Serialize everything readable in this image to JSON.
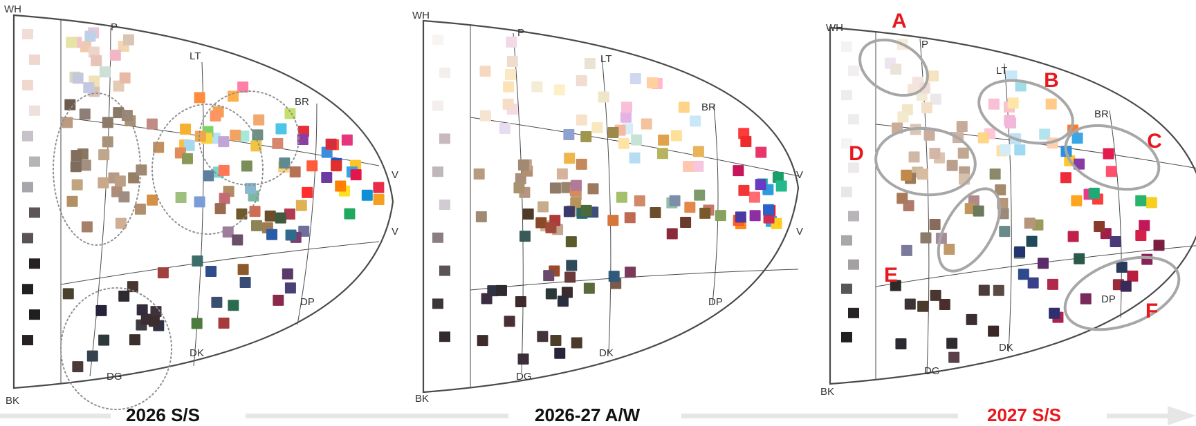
{
  "tone_labels": {
    "wh": "WH",
    "bk": "BK",
    "p": "P",
    "lt": "LT",
    "br": "BR",
    "v": "V",
    "dp": "DP",
    "dk": "DK",
    "dg": "DG"
  },
  "panels": [
    {
      "caption": "2026 S/S",
      "caption_color": "#111111",
      "neutrals": [
        "#f1dcd6",
        "#efd7cf",
        "#f0d8cf",
        "#eee0dd",
        "#c7c2c9",
        "#b7b3b8",
        "#a9a6ab",
        "#5e5556",
        "#5a5354",
        "#262121",
        "#232020",
        "#211e1f",
        "#262222"
      ],
      "regions": {
        "pale": [
          "#f1c9ae",
          "#e8c6d7",
          "#e3ccb6",
          "#d4d9bd",
          "#f2c4c9",
          "#f3d6b0",
          "#eed4c8",
          "#cde0d7",
          "#e7c3b9",
          "#f1b8c3",
          "#c5c8dd",
          "#bed1e8",
          "#d8c3b6",
          "#e8b9a4",
          "#f0e1b6",
          "#e5e4a6",
          "#d8c5b4",
          "#c3c9e3"
        ],
        "light": [
          "#ffd27e",
          "#a7e8d9",
          "#f2a96e",
          "#b6e1f0",
          "#ff7fa6",
          "#ffba40",
          "#f3a361",
          "#75d7c9",
          "#ff8c3d",
          "#f5b12f",
          "#f3a052",
          "#4cc6e6",
          "#80d06b",
          "#f6d543",
          "#ffb04b",
          "#a6d8ef",
          "#ff9463",
          "#c4e06c",
          "#ff7756",
          "#f0c443"
        ],
        "bright": [
          "#fec327",
          "#ff5c3c",
          "#30a5e4",
          "#ff2d2d",
          "#3b8de0",
          "#ffe020",
          "#ff7f00",
          "#e82c4a",
          "#e6347d",
          "#0b8fd7",
          "#2056c4",
          "#e63039",
          "#8c3ea3",
          "#1fa95f",
          "#e12f2c",
          "#f59e20",
          "#ff5035",
          "#e5164c",
          "#d62d3c",
          "#6d3aa2"
        ],
        "soft": [
          "#c2a68c",
          "#b59a87",
          "#a28f80",
          "#c9a98c",
          "#b08d79",
          "#9f8d84",
          "#8d7f75",
          "#bda083",
          "#a8927c",
          "#8a7968",
          "#a89173",
          "#cfae93",
          "#9b8574",
          "#b18e6e",
          "#8a7763",
          "#a57f68",
          "#7e6c5c",
          "#c2a47f",
          "#977f66",
          "#b38f66",
          "#6c5c4e",
          "#a08971",
          "#836d5b",
          "#bb9a82",
          "#8c7a6b"
        ],
        "dull": [
          "#e38b5a",
          "#f0a64d",
          "#7cb9a5",
          "#c3a4d6",
          "#7a9dd8",
          "#e0b055",
          "#9fbf7f",
          "#d78770",
          "#c18b86",
          "#8bb7cf",
          "#b18c62",
          "#9f7b52",
          "#7a8f58",
          "#cf6d53",
          "#6e8f82",
          "#a07b9d",
          "#c3905d",
          "#8c8455",
          "#5d8b8f",
          "#d49045",
          "#6f6f9e",
          "#b57355",
          "#8a9a56",
          "#c26b73",
          "#5f7f9f",
          "#9b6b4f"
        ],
        "deep": [
          "#6a4f66",
          "#384b74",
          "#4d7a3f",
          "#a23f3f",
          "#2b5ca8",
          "#6a4e2a",
          "#4b3f75",
          "#b13a4f",
          "#3d6e6b",
          "#7a3f6e",
          "#2f4d8a",
          "#8a5a2a",
          "#3f5a3f",
          "#a73a3a",
          "#2f6b8a",
          "#5a3a6b",
          "#8a2a4b",
          "#3a4f6e",
          "#6e5a2a",
          "#2a6b4f"
        ],
        "dark": [
          "#3e3b41",
          "#35414d",
          "#4b3a3a",
          "#3b2e32",
          "#47352f",
          "#2f3243",
          "#3a2f2a",
          "#40323b",
          "#2e2b30",
          "#49402d",
          "#2d3a3c",
          "#3b2d2d",
          "#25223a",
          "#342b3d"
        ]
      },
      "circles": []
    },
    {
      "caption": "2026-27 A/W",
      "caption_color": "#111111",
      "neutrals": [
        "#f8f4f2",
        "#f3efed",
        "#f4efee",
        "#c7b9bd",
        "#bfb7ba",
        "#d0ccd1",
        "#8a7e80",
        "#5a5456",
        "#3b3535",
        "#312b2c"
      ],
      "regions": {
        "pale": [
          "#fbe8c6",
          "#fdf0c8",
          "#f8e1c9",
          "#f3dde4",
          "#e7dcf0",
          "#fbe3b5",
          "#f6e4d2",
          "#eedccf",
          "#f7dcc8",
          "#f2d9e6",
          "#f5ecd6",
          "#f8e8c0",
          "#f0dcd0",
          "#e9e2d5",
          "#f5d8c0",
          "#efe5c8"
        ],
        "light": [
          "#ffd488",
          "#b7ddf2",
          "#ffb9c9",
          "#f6c6e0",
          "#d8ecf6",
          "#ffe099",
          "#f3c3a0",
          "#c7e3d8",
          "#ffc7b0",
          "#e3b3e6",
          "#ffd0a0",
          "#cae7f7",
          "#f8c0d8",
          "#ffe3a5",
          "#d0d8f0",
          "#f5b8a0"
        ],
        "bright": [
          "#ff6b73",
          "#28c6a4",
          "#33a6e6",
          "#ffcc20",
          "#ff8a1a",
          "#e8366b",
          "#8d2ea3",
          "#1b9f6a",
          "#ff3a3a",
          "#d22c52",
          "#ff5a2a",
          "#e4193b",
          "#2e9cdc",
          "#4a3aa0",
          "#f23535",
          "#c8145a",
          "#23b98a",
          "#6b3ac2",
          "#ee2b2b",
          "#2a62c8"
        ],
        "soft": [
          "#b9a08e",
          "#c7ab8f",
          "#a88f7b",
          "#d6b39a",
          "#b49680",
          "#a08a76",
          "#c3a592",
          "#9b836d",
          "#d1b598",
          "#b08f72",
          "#a9926f",
          "#c8a888",
          "#8f7b69",
          "#b79b7e",
          "#c0a187",
          "#a38872"
        ],
        "dull": [
          "#d98a5c",
          "#eeb64c",
          "#91bfa9",
          "#b6b45d",
          "#c37a6b",
          "#8ea2cf",
          "#e0a24a",
          "#a4c06a",
          "#d6763d",
          "#c48a5b",
          "#7e9a6b",
          "#b07a98",
          "#e9b35a",
          "#9c8a4a",
          "#7d8fa8",
          "#d08a68",
          "#a0964c",
          "#c06a54",
          "#86a25c",
          "#e3884a",
          "#9c7a5e",
          "#b8945a"
        ],
        "deep": [
          "#7a5a4a",
          "#6a3a3a",
          "#2f5a7a",
          "#b03a3a",
          "#5a6a3a",
          "#3a5a5a",
          "#8a4a2a",
          "#6b4e2d",
          "#4f3a2a",
          "#a24a3a",
          "#2a6a6a",
          "#7a3a5a",
          "#3e4f7a",
          "#9a4a2a",
          "#5a5a2a",
          "#6a4a6a",
          "#2f4a5a",
          "#8a2a3a",
          "#4a6a3a",
          "#6a3a2a",
          "#3a3a6a",
          "#7a5a2a"
        ],
        "dark": [
          "#3a2e3a",
          "#2e3442",
          "#4a3034",
          "#3b2a2e",
          "#4a3a2a",
          "#2a2e3e",
          "#3e2a2a",
          "#44323a",
          "#2e2a30",
          "#4d3e2a",
          "#2a383a",
          "#3e2b2b",
          "#2a2438",
          "#3a2e40"
        ]
      },
      "circles": []
    },
    {
      "caption": "2027 S/S",
      "caption_color": "#e8191e",
      "neutrals": [
        "#f4f3f3",
        "#f1efef",
        "#eeecec",
        "#ededed",
        "#f5f4f5",
        "#eceaea",
        "#e8e6e7",
        "#b7b5b7",
        "#a9a7a9",
        "#a4a1a3",
        "#595657",
        "#262424",
        "#232021"
      ],
      "regions": {
        "pale": [
          "#f3e6d8",
          "#f7ecd9",
          "#eee4ef",
          "#f5e3e0",
          "#f0ead7",
          "#ebe8e9",
          "#f4dfc8",
          "#f6e3c0",
          "#e9e3d9",
          "#f2e6c8",
          "#efdcd6",
          "#f4e9ce"
        ],
        "light": [
          "#9fd9f1",
          "#ffc6d8",
          "#ffd58a",
          "#b2e4ee",
          "#f7b4d1",
          "#ffe0a0",
          "#c8e7f8",
          "#f9c4c9",
          "#9fdde8",
          "#ffd0b0",
          "#f1b7da",
          "#d3ecf6",
          "#ffcb8a",
          "#bfe0f5",
          "#f8bfd5",
          "#ffe5a8"
        ],
        "bright": [
          "#ffc72c",
          "#ff7a27",
          "#ff4f6e",
          "#3aa6e6",
          "#f7d01f",
          "#28b46d",
          "#ff3c3c",
          "#e83a8a",
          "#ffa41e",
          "#8a3aa5",
          "#2d8fe0",
          "#ef2b3a",
          "#e41b4e",
          "#1eaa74"
        ],
        "soft": [
          "#ddc4b0",
          "#d3b6a5",
          "#c9ad98",
          "#d9c6b7",
          "#cdb79f",
          "#c2a892",
          "#d8bca0",
          "#baa08c",
          "#cbb2a4",
          "#c6ac98",
          "#d0b8a6",
          "#b8a08f",
          "#c9aea0",
          "#d6c0ac"
        ],
        "dull": [
          "#b6977c",
          "#c09a6a",
          "#9b8a7a",
          "#8c7a6a",
          "#a48a6a",
          "#b08a8a",
          "#9a7a5a",
          "#a68a9a",
          "#7f8f7a",
          "#c0965a",
          "#8a8a6a",
          "#b07a6a",
          "#6a8a8a",
          "#c28a4a",
          "#8a6a5a",
          "#9a9a5a",
          "#7a7a9a",
          "#b5967a",
          "#6a7a5a",
          "#a87a5a"
        ],
        "deep": [
          "#c2185b",
          "#a9234b",
          "#2e4a8e",
          "#7a2a5a",
          "#3a3f8a",
          "#b81f3f",
          "#23346e",
          "#8a2458",
          "#5a2a6a",
          "#d41f4a",
          "#2f2f6f",
          "#a01f4a",
          "#4a3a7a",
          "#c0204a",
          "#1f4a5a",
          "#7a1f3f",
          "#2a5a4a",
          "#9a2a3a",
          "#3a2a5a",
          "#b02a4a",
          "#2a3a5a",
          "#8a3a2a"
        ],
        "dark": [
          "#4d3b3c",
          "#3a2e30",
          "#5a4048",
          "#2e2a2a",
          "#4a3630",
          "#3b2628",
          "#5a4a44",
          "#2f2a30",
          "#4a2e2e",
          "#3a3432",
          "#2b2a33",
          "#4b3b2c"
        ]
      },
      "circles": [
        {
          "label": "A"
        },
        {
          "label": "B"
        },
        {
          "label": "C"
        },
        {
          "label": "D"
        },
        {
          "label": "E"
        },
        {
          "label": "F"
        }
      ]
    }
  ]
}
